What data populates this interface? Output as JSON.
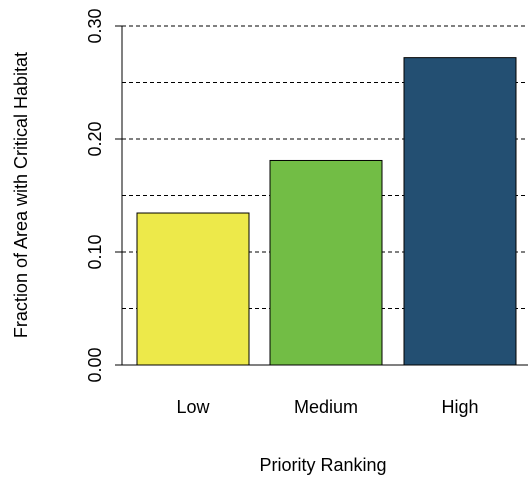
{
  "chart_data": {
    "type": "bar",
    "x_label": "Priority Ranking",
    "y_label": "Fraction of Area with Critical Habitat",
    "categories": [
      "Low",
      "Medium",
      "High"
    ],
    "values": [
      0.1345,
      0.181,
      0.272
    ],
    "colors": [
      "#ede94a",
      "#72bd45",
      "#234f72"
    ],
    "ylim": [
      0,
      0.3
    ],
    "yticks": [
      {
        "value": 0,
        "label": "0.00"
      },
      {
        "value": 0.1,
        "label": "0.10"
      },
      {
        "value": 0.2,
        "label": "0.20"
      },
      {
        "value": 0.3,
        "label": "0.30"
      }
    ],
    "grid": true,
    "grid_values": [
      0.05,
      0.1,
      0.15,
      0.2,
      0.25,
      0.3
    ]
  }
}
